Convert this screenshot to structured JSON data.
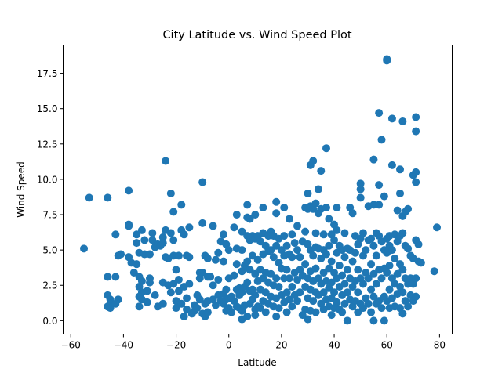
{
  "chart_data": {
    "type": "scatter",
    "title": "City Latitude vs. Wind Speed Plot",
    "xlabel": "Latitude",
    "ylabel": "Wind Speed",
    "xlim": [
      -62.9,
      84.8
    ],
    "ylim": [
      -0.95,
      19.5
    ],
    "xticks": [
      -60,
      -40,
      -20,
      0,
      20,
      40,
      60,
      80
    ],
    "xtick_labels": [
      "−60",
      "−40",
      "−20",
      "0",
      "20",
      "40",
      "60",
      "80"
    ],
    "yticks": [
      0.0,
      2.5,
      5.0,
      7.5,
      10.0,
      12.5,
      15.0,
      17.5
    ],
    "ytick_labels": [
      "0.0",
      "2.5",
      "5.0",
      "7.5",
      "10.0",
      "12.5",
      "15.0",
      "17.5"
    ],
    "grid": false,
    "legend": "none",
    "marker_color": "#1f77b4",
    "points": [
      [
        -55,
        5.1
      ],
      [
        -53,
        8.7
      ],
      [
        -46,
        8.7
      ],
      [
        -46,
        3.1
      ],
      [
        -46,
        1.8
      ],
      [
        -45,
        1.5
      ],
      [
        -45,
        1.2
      ],
      [
        -46,
        1.0
      ],
      [
        -45,
        0.9
      ],
      [
        -43,
        6.1
      ],
      [
        -43,
        3.1
      ],
      [
        -42,
        1.5
      ],
      [
        -43,
        1.2
      ],
      [
        -42,
        4.6
      ],
      [
        -41,
        4.7
      ],
      [
        -38,
        9.2
      ],
      [
        -38,
        6.8
      ],
      [
        -38,
        6.7
      ],
      [
        -38,
        4.5
      ],
      [
        -37,
        4.1
      ],
      [
        -36,
        3.4
      ],
      [
        -35,
        6.1
      ],
      [
        -35,
        5.5
      ],
      [
        -34,
        4.8
      ],
      [
        -35,
        4.0
      ],
      [
        -34,
        3.1
      ],
      [
        -33,
        2.8
      ],
      [
        -34,
        2.4
      ],
      [
        -33,
        2.0
      ],
      [
        -34,
        1.7
      ],
      [
        -33,
        1.5
      ],
      [
        -34,
        1.0
      ],
      [
        -33,
        6.4
      ],
      [
        -32,
        5.7
      ],
      [
        -32,
        4.7
      ],
      [
        -31,
        2.1
      ],
      [
        -31,
        1.3
      ],
      [
        -30,
        4.7
      ],
      [
        -30,
        3.0
      ],
      [
        -30,
        2.7
      ],
      [
        -29,
        6.2
      ],
      [
        -29,
        5.7
      ],
      [
        -28,
        5.2
      ],
      [
        -28,
        1.8
      ],
      [
        -27,
        5.4
      ],
      [
        -27,
        1.0
      ],
      [
        -26,
        5.3
      ],
      [
        -25,
        5.9
      ],
      [
        -25,
        5.5
      ],
      [
        -25,
        1.2
      ],
      [
        -25,
        2.7
      ],
      [
        -24,
        11.3
      ],
      [
        -24,
        6.4
      ],
      [
        -24,
        4.5
      ],
      [
        -23,
        4.4
      ],
      [
        -23,
        2.5
      ],
      [
        -22,
        9.0
      ],
      [
        -22,
        6.2
      ],
      [
        -22,
        2.0
      ],
      [
        -21,
        7.7
      ],
      [
        -21,
        5.7
      ],
      [
        -21,
        4.6
      ],
      [
        -21,
        2.6
      ],
      [
        -20,
        3.6
      ],
      [
        -20,
        1.4
      ],
      [
        -20,
        0.9
      ],
      [
        -19,
        4.6
      ],
      [
        -19,
        2.9
      ],
      [
        -19,
        2.1
      ],
      [
        -18,
        8.2
      ],
      [
        -18,
        6.4
      ],
      [
        -18,
        1.2
      ],
      [
        -17,
        6.1
      ],
      [
        -17,
        2.4
      ],
      [
        -17,
        0.3
      ],
      [
        -16,
        4.6
      ],
      [
        -16,
        1.6
      ],
      [
        -16,
        0.8
      ],
      [
        -15,
        6.6
      ],
      [
        -15,
        4.5
      ],
      [
        -15,
        2.6
      ],
      [
        -14,
        0.5
      ],
      [
        -13,
        1.1
      ],
      [
        -13,
        0.7
      ],
      [
        -12,
        1.8
      ],
      [
        -12,
        0.9
      ],
      [
        -11,
        3.4
      ],
      [
        -11,
        3.0
      ],
      [
        -11,
        1.5
      ],
      [
        -10,
        9.8
      ],
      [
        -10,
        6.9
      ],
      [
        -10,
        3.4
      ],
      [
        -10,
        0.5
      ],
      [
        -9,
        4.6
      ],
      [
        -9,
        1.2
      ],
      [
        -9,
        0.3
      ],
      [
        -8,
        4.4
      ],
      [
        -8,
        3.1
      ],
      [
        -8,
        1.4
      ],
      [
        -8,
        0.6
      ],
      [
        -7,
        3.1
      ],
      [
        -6,
        6.7
      ],
      [
        -6,
        2.5
      ],
      [
        -6,
        1.5
      ],
      [
        -5,
        4.3
      ],
      [
        -5,
        1.1
      ],
      [
        -4,
        4.8
      ],
      [
        -4,
        2.9
      ],
      [
        -4,
        1.8
      ],
      [
        -3,
        5.6
      ],
      [
        -3,
        1.4
      ],
      [
        -2,
        6.1
      ],
      [
        -2,
        4.2
      ],
      [
        -2,
        1.9
      ],
      [
        -2,
        1.2
      ],
      [
        -1,
        5.4
      ],
      [
        -1,
        2.2
      ],
      [
        -1,
        1.5
      ],
      [
        -1,
        0.7
      ],
      [
        0,
        5.0
      ],
      [
        0,
        3.0
      ],
      [
        0,
        1.6
      ],
      [
        0,
        0.9
      ],
      [
        1,
        1.7
      ],
      [
        1,
        0.6
      ],
      [
        2,
        6.6
      ],
      [
        2,
        3.2
      ],
      [
        2,
        1.4
      ],
      [
        3,
        7.5
      ],
      [
        3,
        5.1
      ],
      [
        3,
        4.0
      ],
      [
        3,
        2.2
      ],
      [
        3,
        1.0
      ],
      [
        4,
        2.3
      ],
      [
        4,
        1.8
      ],
      [
        4,
        0.9
      ],
      [
        5,
        6.3
      ],
      [
        5,
        5.0
      ],
      [
        5,
        3.5
      ],
      [
        5,
        2.0
      ],
      [
        5,
        0.7
      ],
      [
        5,
        0.1
      ],
      [
        6,
        3.9
      ],
      [
        6,
        2.4
      ],
      [
        6,
        1.1
      ],
      [
        7,
        8.2
      ],
      [
        7,
        7.3
      ],
      [
        7,
        6.0
      ],
      [
        7,
        4.2
      ],
      [
        7,
        2.7
      ],
      [
        7,
        0.3
      ],
      [
        8,
        7.2
      ],
      [
        8,
        5.7
      ],
      [
        8,
        3.6
      ],
      [
        8,
        2.1
      ],
      [
        8,
        1.2
      ],
      [
        9,
        6.0
      ],
      [
        9,
        4.6
      ],
      [
        9,
        2.2
      ],
      [
        9,
        1.5
      ],
      [
        10,
        7.5
      ],
      [
        10,
        5.8
      ],
      [
        10,
        3.3
      ],
      [
        10,
        1.8
      ],
      [
        10,
        0.8
      ],
      [
        10,
        0.4
      ],
      [
        11,
        6.0
      ],
      [
        11,
        4.3
      ],
      [
        11,
        2.8
      ],
      [
        11,
        1.0
      ],
      [
        12,
        5.6
      ],
      [
        12,
        3.6
      ],
      [
        12,
        2.2
      ],
      [
        12,
        0.9
      ],
      [
        13,
        8.0
      ],
      [
        13,
        6.2
      ],
      [
        13,
        4.7
      ],
      [
        13,
        3.0
      ],
      [
        13,
        1.4
      ],
      [
        14,
        5.3
      ],
      [
        14,
        3.4
      ],
      [
        14,
        2.0
      ],
      [
        14,
        0.6
      ],
      [
        15,
        6.0
      ],
      [
        15,
        4.9
      ],
      [
        15,
        2.7
      ],
      [
        15,
        1.2
      ],
      [
        16,
        6.3
      ],
      [
        16,
        5.0
      ],
      [
        16,
        3.3
      ],
      [
        16,
        1.7
      ],
      [
        17,
        6.0
      ],
      [
        17,
        4.5
      ],
      [
        17,
        2.5
      ],
      [
        17,
        1.0
      ],
      [
        18,
        8.4
      ],
      [
        18,
        7.6
      ],
      [
        18,
        5.3
      ],
      [
        18,
        3.0
      ],
      [
        18,
        1.6
      ],
      [
        18,
        0.3
      ],
      [
        19,
        5.8
      ],
      [
        19,
        4.1
      ],
      [
        19,
        2.4
      ],
      [
        19,
        0.9
      ],
      [
        20,
        5.0
      ],
      [
        20,
        3.7
      ],
      [
        20,
        1.8
      ],
      [
        21,
        8.0
      ],
      [
        21,
        6.0
      ],
      [
        21,
        4.6
      ],
      [
        21,
        3.0
      ],
      [
        21,
        1.3
      ],
      [
        22,
        5.3
      ],
      [
        22,
        3.6
      ],
      [
        22,
        2.0
      ],
      [
        22,
        0.6
      ],
      [
        23,
        7.2
      ],
      [
        23,
        4.7
      ],
      [
        23,
        3.0
      ],
      [
        23,
        1.5
      ],
      [
        24,
        6.1
      ],
      [
        24,
        4.5
      ],
      [
        24,
        2.4
      ],
      [
        24,
        1.0
      ],
      [
        25,
        5.5
      ],
      [
        25,
        3.4
      ],
      [
        25,
        1.8
      ],
      [
        26,
        6.7
      ],
      [
        26,
        5.0
      ],
      [
        26,
        2.9
      ],
      [
        26,
        1.4
      ],
      [
        27,
        4.5
      ],
      [
        27,
        3.6
      ],
      [
        27,
        2.0
      ],
      [
        28,
        5.6
      ],
      [
        28,
        3.2
      ],
      [
        28,
        0.4
      ],
      [
        29,
        8.0
      ],
      [
        29,
        6.3
      ],
      [
        29,
        4.0
      ],
      [
        29,
        2.4
      ],
      [
        29,
        0.8
      ],
      [
        30,
        9.0
      ],
      [
        30,
        7.9
      ],
      [
        30,
        5.4
      ],
      [
        30,
        3.0
      ],
      [
        30,
        1.6
      ],
      [
        30,
        0.1
      ],
      [
        31,
        11.0
      ],
      [
        31,
        8.1
      ],
      [
        31,
        5.0
      ],
      [
        31,
        3.5
      ],
      [
        31,
        2.2
      ],
      [
        31,
        0.7
      ],
      [
        32,
        11.3
      ],
      [
        32,
        7.9
      ],
      [
        32,
        4.6
      ],
      [
        32,
        2.8
      ],
      [
        32,
        1.4
      ],
      [
        33,
        8.3
      ],
      [
        33,
        6.2
      ],
      [
        33,
        5.2
      ],
      [
        33,
        3.7
      ],
      [
        33,
        2.0
      ],
      [
        33,
        0.6
      ],
      [
        34,
        9.3
      ],
      [
        34,
        7.6
      ],
      [
        34,
        5.1
      ],
      [
        34,
        3.0
      ],
      [
        34,
        1.8
      ],
      [
        35,
        10.6
      ],
      [
        35,
        7.9
      ],
      [
        35,
        4.4
      ],
      [
        35,
        2.6
      ],
      [
        35,
        1.2
      ],
      [
        36,
        6.1
      ],
      [
        36,
        5.0
      ],
      [
        36,
        3.4
      ],
      [
        36,
        2.0
      ],
      [
        36,
        0.8
      ],
      [
        37,
        12.2
      ],
      [
        37,
        8.0
      ],
      [
        37,
        4.7
      ],
      [
        37,
        2.8
      ],
      [
        37,
        1.5
      ],
      [
        38,
        7.2
      ],
      [
        38,
        5.3
      ],
      [
        38,
        3.7
      ],
      [
        38,
        2.3
      ],
      [
        38,
        1.0
      ],
      [
        39,
        6.1
      ],
      [
        39,
        4.2
      ],
      [
        39,
        2.7
      ],
      [
        39,
        1.6
      ],
      [
        39,
        0.4
      ],
      [
        40,
        6.8
      ],
      [
        40,
        5.7
      ],
      [
        40,
        3.4
      ],
      [
        40,
        2.0
      ],
      [
        40,
        0.9
      ],
      [
        41,
        8.0
      ],
      [
        41,
        6.4
      ],
      [
        41,
        4.8
      ],
      [
        41,
        3.0
      ],
      [
        41,
        1.3
      ],
      [
        42,
        5.3
      ],
      [
        42,
        3.9
      ],
      [
        42,
        2.4
      ],
      [
        42,
        0.8
      ],
      [
        43,
        5.0
      ],
      [
        43,
        3.2
      ],
      [
        43,
        1.8
      ],
      [
        43,
        0.6
      ],
      [
        44,
        6.2
      ],
      [
        44,
        4.5
      ],
      [
        44,
        2.6
      ],
      [
        44,
        1.2
      ],
      [
        45,
        5.1
      ],
      [
        45,
        3.6
      ],
      [
        45,
        2.0
      ],
      [
        45,
        0.0
      ],
      [
        46,
        8.0
      ],
      [
        46,
        5.0
      ],
      [
        46,
        3.0
      ],
      [
        46,
        1.5
      ],
      [
        47,
        7.6
      ],
      [
        47,
        4.2
      ],
      [
        47,
        2.4
      ],
      [
        47,
        1.0
      ],
      [
        48,
        6.0
      ],
      [
        48,
        4.8
      ],
      [
        48,
        2.8
      ],
      [
        48,
        1.4
      ],
      [
        49,
        5.4
      ],
      [
        49,
        3.6
      ],
      [
        49,
        2.0
      ],
      [
        49,
        0.6
      ],
      [
        50,
        9.7
      ],
      [
        50,
        9.3
      ],
      [
        50,
        8.7
      ],
      [
        50,
        5.8
      ],
      [
        50,
        3.0
      ],
      [
        50,
        1.2
      ],
      [
        51,
        6.2
      ],
      [
        51,
        4.6
      ],
      [
        51,
        2.6
      ],
      [
        51,
        0.9
      ],
      [
        52,
        5.0
      ],
      [
        52,
        3.4
      ],
      [
        52,
        1.6
      ],
      [
        53,
        8.1
      ],
      [
        53,
        5.7
      ],
      [
        53,
        3.0
      ],
      [
        53,
        1.2
      ],
      [
        54,
        5.8
      ],
      [
        54,
        4.0
      ],
      [
        54,
        2.2
      ],
      [
        54,
        0.6
      ],
      [
        55,
        11.4
      ],
      [
        55,
        8.2
      ],
      [
        55,
        5.3
      ],
      [
        55,
        3.3
      ],
      [
        55,
        1.7
      ],
      [
        55,
        0.0
      ],
      [
        56,
        6.2
      ],
      [
        56,
        4.6
      ],
      [
        56,
        2.6
      ],
      [
        56,
        1.2
      ],
      [
        57,
        14.7
      ],
      [
        57,
        9.6
      ],
      [
        57,
        8.2
      ],
      [
        57,
        6.0
      ],
      [
        57,
        3.6
      ],
      [
        57,
        1.4
      ],
      [
        58,
        12.8
      ],
      [
        58,
        5.6
      ],
      [
        58,
        3.0
      ],
      [
        58,
        0.9
      ],
      [
        59,
        8.8
      ],
      [
        59,
        5.0
      ],
      [
        59,
        3.7
      ],
      [
        59,
        1.7
      ],
      [
        59,
        0.0
      ],
      [
        60,
        18.4
      ],
      [
        60,
        18.5
      ],
      [
        60,
        5.8
      ],
      [
        60,
        4.8
      ],
      [
        60,
        3.4
      ],
      [
        60,
        1.4
      ],
      [
        61,
        6.0
      ],
      [
        61,
        5.3
      ],
      [
        61,
        3.9
      ],
      [
        61,
        2.2
      ],
      [
        61,
        0.9
      ],
      [
        62,
        14.3
      ],
      [
        62,
        11.0
      ],
      [
        62,
        5.0
      ],
      [
        62,
        3.0
      ],
      [
        62,
        1.6
      ],
      [
        63,
        6.1
      ],
      [
        63,
        4.4
      ],
      [
        63,
        2.6
      ],
      [
        63,
        1.0
      ],
      [
        64,
        7.8
      ],
      [
        64,
        5.6
      ],
      [
        64,
        3.3
      ],
      [
        64,
        1.9
      ],
      [
        65,
        10.7
      ],
      [
        65,
        9.0
      ],
      [
        65,
        6.0
      ],
      [
        65,
        4.0
      ],
      [
        65,
        2.4
      ],
      [
        65,
        0.9
      ],
      [
        66,
        14.1
      ],
      [
        66,
        7.4
      ],
      [
        66,
        6.2
      ],
      [
        66,
        3.6
      ],
      [
        66,
        2.0
      ],
      [
        66,
        0.5
      ],
      [
        67,
        7.7
      ],
      [
        67,
        5.3
      ],
      [
        67,
        3.0
      ],
      [
        67,
        1.4
      ],
      [
        68,
        7.9
      ],
      [
        68,
        5.1
      ],
      [
        68,
        2.6
      ],
      [
        68,
        1.0
      ],
      [
        69,
        4.6
      ],
      [
        69,
        3.0
      ],
      [
        69,
        1.8
      ],
      [
        70,
        10.3
      ],
      [
        70,
        4.4
      ],
      [
        70,
        2.6
      ],
      [
        70,
        1.4
      ],
      [
        71,
        14.4
      ],
      [
        71,
        13.4
      ],
      [
        71,
        10.5
      ],
      [
        71,
        9.8
      ],
      [
        71,
        5.7
      ],
      [
        71,
        3.0
      ],
      [
        71,
        1.7
      ],
      [
        72,
        5.4
      ],
      [
        72,
        4.2
      ],
      [
        73,
        4.1
      ],
      [
        78,
        3.5
      ],
      [
        79,
        6.6
      ]
    ]
  }
}
